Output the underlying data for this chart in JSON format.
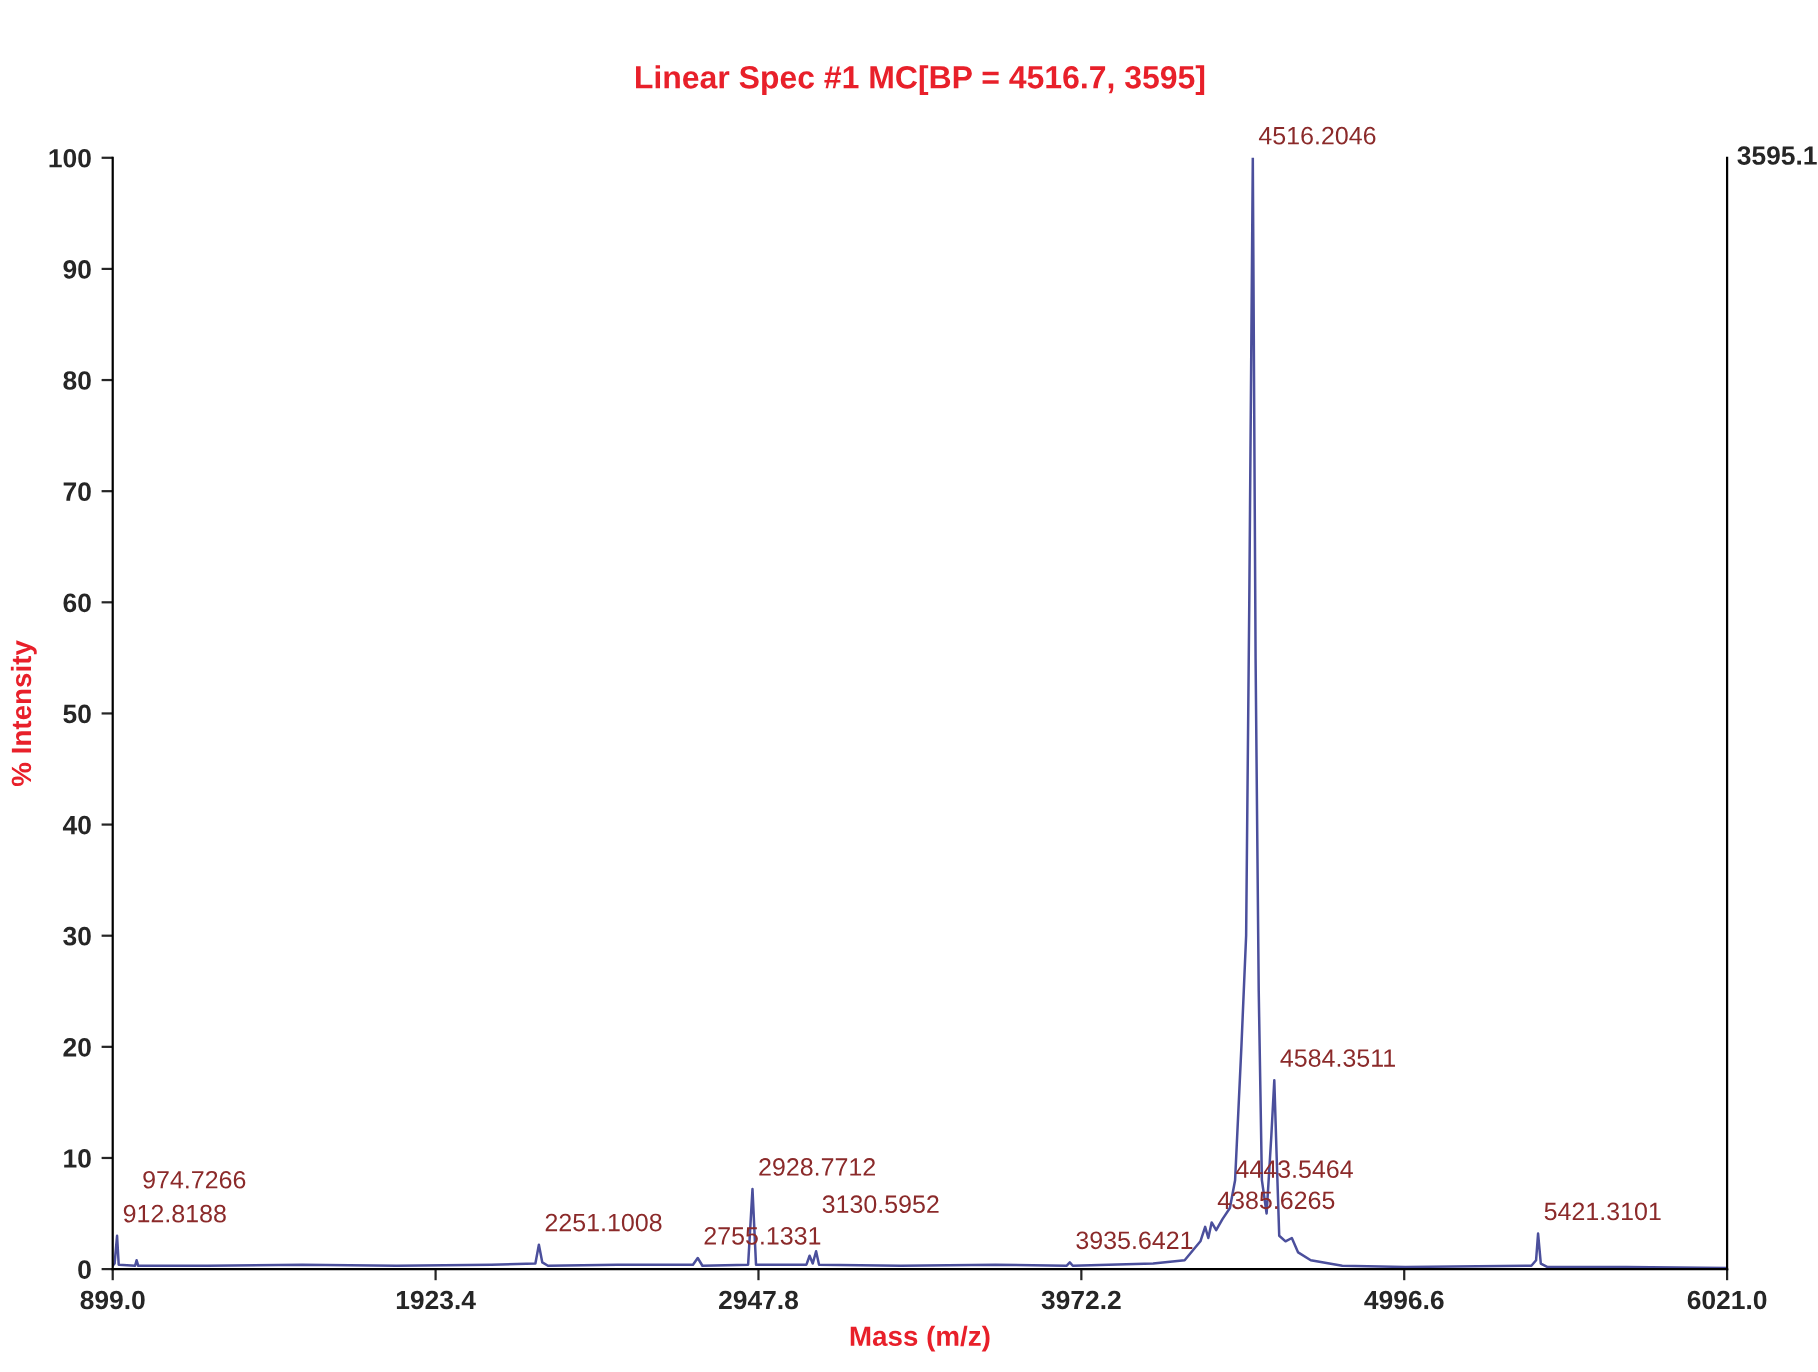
{
  "chart_data": {
    "type": "line",
    "title": "Linear Spec #1 MC[BP = 4516.7, 3595]",
    "xlabel": "Mass (m/z)",
    "ylabel": "% Intensity",
    "series": [
      {
        "color": "#4b4f9c",
        "x": [
          899,
          905,
          912.8,
          918,
          970,
          974.7,
          980,
          1200,
          1500,
          1800,
          2100,
          2240,
          2251.1,
          2262,
          2280,
          2500,
          2740,
          2755.1,
          2770,
          2915,
          2928.8,
          2940,
          3100,
          3110,
          3120,
          3130.6,
          3140,
          3400,
          3700,
          3925,
          3935.6,
          3945,
          4200,
          4300,
          4350,
          4365,
          4375,
          4385.6,
          4400,
          4420,
          4443.5,
          4460,
          4480,
          4495,
          4505,
          4516.2,
          4525,
          4535,
          4545,
          4560,
          4575,
          4584.4,
          4592,
          4600,
          4620,
          4640,
          4660,
          4700,
          4800,
          5000,
          5400,
          5415,
          5421.3,
          5430,
          5450,
          5700,
          6021
        ],
        "values": [
          0.3,
          0.5,
          3.0,
          0.4,
          0.3,
          0.8,
          0.3,
          0.3,
          0.4,
          0.3,
          0.4,
          0.5,
          2.2,
          0.6,
          0.3,
          0.4,
          0.4,
          1.0,
          0.3,
          0.4,
          7.2,
          0.4,
          0.4,
          1.2,
          0.5,
          1.6,
          0.4,
          0.3,
          0.4,
          0.3,
          0.6,
          0.3,
          0.5,
          0.8,
          2.5,
          3.8,
          2.8,
          4.2,
          3.5,
          4.5,
          5.5,
          8,
          20,
          30,
          60,
          100,
          55,
          25,
          8,
          5,
          12,
          17,
          10,
          3,
          2.5,
          2.8,
          1.5,
          0.8,
          0.3,
          0.2,
          0.3,
          0.8,
          3.2,
          0.5,
          0.2,
          0.2,
          0.1
        ]
      }
    ],
    "annotations": [
      {
        "text": "912.8188",
        "x": 912.8,
        "y": 3.0
      },
      {
        "text": "974.7266",
        "x": 974.7,
        "y": 0.8
      },
      {
        "text": "2251.1008",
        "x": 2251.1,
        "y": 2.2
      },
      {
        "text": "2755.1331",
        "x": 2755.1,
        "y": 1.0
      },
      {
        "text": "2928.7712",
        "x": 2928.8,
        "y": 7.2
      },
      {
        "text": "3130.5952",
        "x": 3130.6,
        "y": 1.6
      },
      {
        "text": "3935.6421",
        "x": 3935.6,
        "y": 0.6
      },
      {
        "text": "4385.6265",
        "x": 4385.6,
        "y": 4.2
      },
      {
        "text": "4443.5464",
        "x": 4443.5,
        "y": 5.5
      },
      {
        "text": "4516.2046",
        "x": 4516.2,
        "y": 100
      },
      {
        "text": "4584.3511",
        "x": 4584.4,
        "y": 17
      },
      {
        "text": "5421.3101",
        "x": 5421.3,
        "y": 3.2
      },
      "3595.1"
    ],
    "xlim": [
      899,
      6021
    ],
    "xticks": [
      {
        "value": 899,
        "label": "899.0"
      },
      1923.4,
      2947.8,
      3972.2,
      4996.6,
      {
        "value": 6021,
        "label": "6021.0"
      }
    ],
    "ylim": [
      0,
      100
    ],
    "yticks": [
      0,
      10,
      20,
      30,
      40,
      50,
      60,
      70,
      80,
      90,
      100
    ],
    "grid": false,
    "legend": false,
    "marker": "none",
    "line_style": "solid"
  }
}
